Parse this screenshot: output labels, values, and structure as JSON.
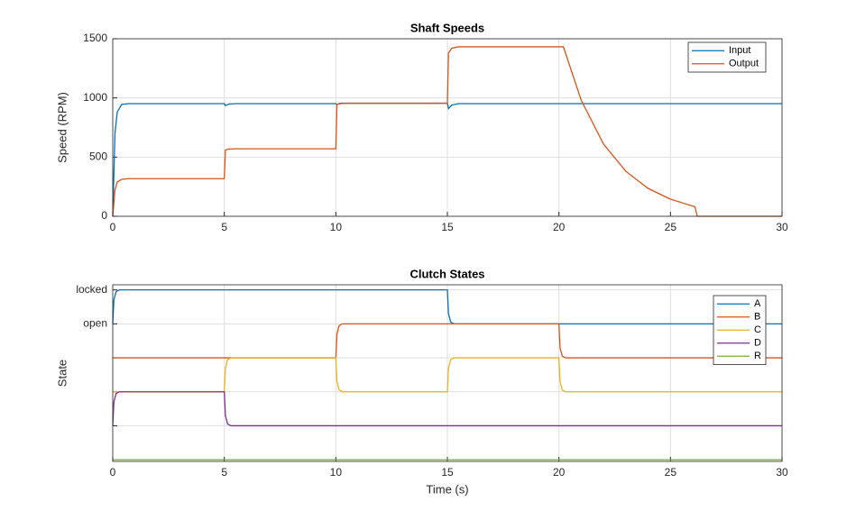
{
  "chart_data": [
    {
      "type": "line",
      "title": "Shaft Speeds",
      "y_label": "Speed (RPM)",
      "x": [
        0,
        0.1,
        0.2,
        0.4,
        0.7,
        5,
        5.05,
        5.2,
        5.5,
        10,
        10.05,
        10.2,
        10.5,
        15,
        15.05,
        15.2,
        15.5,
        20.2,
        21,
        22,
        23,
        24,
        25,
        26.1,
        26.2,
        30
      ],
      "series": [
        {
          "name": "Input",
          "color": "#0072BD",
          "values": [
            0,
            700,
            880,
            945,
            952,
            952,
            935,
            948,
            952,
            952,
            945,
            955,
            955,
            955,
            910,
            940,
            952,
            952,
            952,
            952,
            952,
            952,
            952,
            952,
            952,
            952
          ]
        },
        {
          "name": "Output",
          "color": "#D95319",
          "values": [
            0,
            220,
            290,
            312,
            318,
            318,
            560,
            568,
            570,
            570,
            945,
            952,
            955,
            955,
            1380,
            1420,
            1432,
            1432,
            980,
            610,
            380,
            235,
            145,
            80,
            0,
            0
          ]
        }
      ],
      "xlim": [
        0,
        30
      ],
      "xticks": [
        0,
        5,
        10,
        15,
        20,
        25,
        30
      ],
      "ylim": [
        0,
        1500
      ],
      "yticks": [
        0,
        500,
        1000,
        1500
      ],
      "grid": true,
      "legend": "northeast"
    },
    {
      "type": "line",
      "title": "Clutch States",
      "y_label": "State",
      "x_label": "Time (s)",
      "x": [
        0,
        0.05,
        0.15,
        0.3,
        0.6,
        5,
        5.05,
        5.15,
        5.3,
        5.6,
        10,
        10.05,
        10.15,
        10.3,
        10.6,
        15,
        15.05,
        15.15,
        15.3,
        15.6,
        20,
        20.05,
        20.15,
        20.3,
        20.6,
        30
      ],
      "series": [
        {
          "name": "A",
          "color": "#0072BD",
          "values": [
            0,
            0.7,
            0.95,
            1,
            1,
            1,
            1,
            1,
            1,
            1,
            1,
            1,
            1,
            1,
            1,
            1,
            0.3,
            0.05,
            0,
            0,
            0,
            0,
            0,
            0,
            0,
            0
          ]
        },
        {
          "name": "B",
          "color": "#D95319",
          "values": [
            -1,
            -1,
            -1,
            -1,
            -1,
            -1,
            -1,
            -1,
            -1,
            -1,
            -1,
            -0.3,
            -0.05,
            0,
            0,
            0,
            0,
            0,
            0,
            0,
            0,
            -0.7,
            -0.95,
            -1,
            -1,
            -1
          ]
        },
        {
          "name": "C",
          "color": "#EDB120",
          "values": [
            -2,
            -2,
            -2,
            -2,
            -2,
            -2,
            -1.3,
            -1.05,
            -1,
            -1,
            -1,
            -1.7,
            -1.95,
            -2,
            -2,
            -2,
            -1.3,
            -1.05,
            -1,
            -1,
            -1,
            -1.7,
            -1.95,
            -2,
            -2,
            -2
          ]
        },
        {
          "name": "D",
          "color": "#7E2F8E",
          "values": [
            -3,
            -2.3,
            -2.05,
            -2,
            -2,
            -2,
            -2.7,
            -2.95,
            -3,
            -3,
            -3,
            -3,
            -3,
            -3,
            -3,
            -3,
            -3,
            -3,
            -3,
            -3,
            -3,
            -3,
            -3,
            -3,
            -3,
            -3
          ]
        },
        {
          "name": "R",
          "color": "#77AC30",
          "values": [
            -4,
            -4,
            -4,
            -4,
            -4,
            -4,
            -4,
            -4,
            -4,
            -4,
            -4,
            -4,
            -4,
            -4,
            -4,
            -4,
            -4,
            -4,
            -4,
            -4,
            -4,
            -4,
            -4,
            -4,
            -4,
            -4
          ]
        }
      ],
      "xlim": [
        0,
        30
      ],
      "xticks": [
        0,
        5,
        10,
        15,
        20,
        25,
        30
      ],
      "ylim": [
        -4.05,
        1.15
      ],
      "yticks": [
        {
          "value": -3,
          "label": null
        },
        {
          "value": -2,
          "label": null
        },
        {
          "value": -1,
          "label": null
        },
        {
          "value": 0,
          "label": "open"
        },
        {
          "value": 1,
          "label": "locked"
        }
      ],
      "grid": true,
      "legend": "northeast"
    }
  ]
}
